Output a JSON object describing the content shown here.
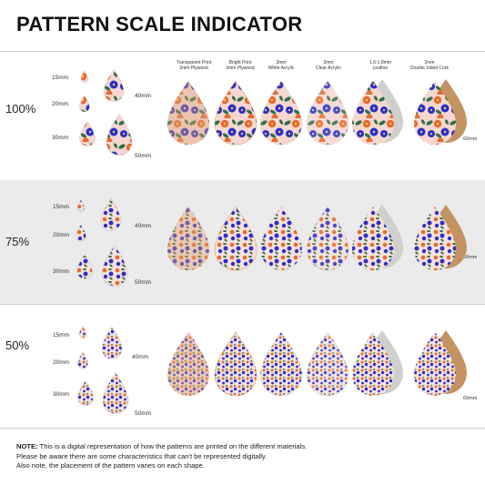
{
  "title": "PATTERN SCALE INDICATOR",
  "materials": [
    {
      "line1": "Transparent Print",
      "line2": "3mm Plywood"
    },
    {
      "line1": "Bright Print",
      "line2": "3mm Plywood"
    },
    {
      "line1": "3mm",
      "line2": "White Acrylic"
    },
    {
      "line1": "3mm",
      "line2": "Clear Acrylic"
    },
    {
      "line1": "1.6-1.8mm",
      "line2": "Leather"
    },
    {
      "line1": "2mm",
      "line2": "Double Sided Cork"
    }
  ],
  "scales": [
    {
      "label": "100%"
    },
    {
      "label": "75%"
    },
    {
      "label": "50%"
    }
  ],
  "sizes": {
    "s15": "15mm",
    "s20": "20mm",
    "s30": "30mm",
    "s40": "40mm",
    "s50": "50mm",
    "s60": "60mm"
  },
  "note": {
    "bold": "NOTE:",
    "line1": " This is a digital representation of how the patterns are printed on the different materials.",
    "line2": "Please be aware there are some characteristics that can't be represented digitally.",
    "line3": "Also note, the placement of the pattern varies on each shape."
  },
  "colors": {
    "orange": "#e8692f",
    "blue": "#2c2fc9",
    "green": "#2f7048",
    "pink": "#f4c6c6",
    "plywood": "#d9a77c",
    "white": "#ffffff",
    "leather": "#cfd0cb",
    "cork": "#c49362"
  }
}
